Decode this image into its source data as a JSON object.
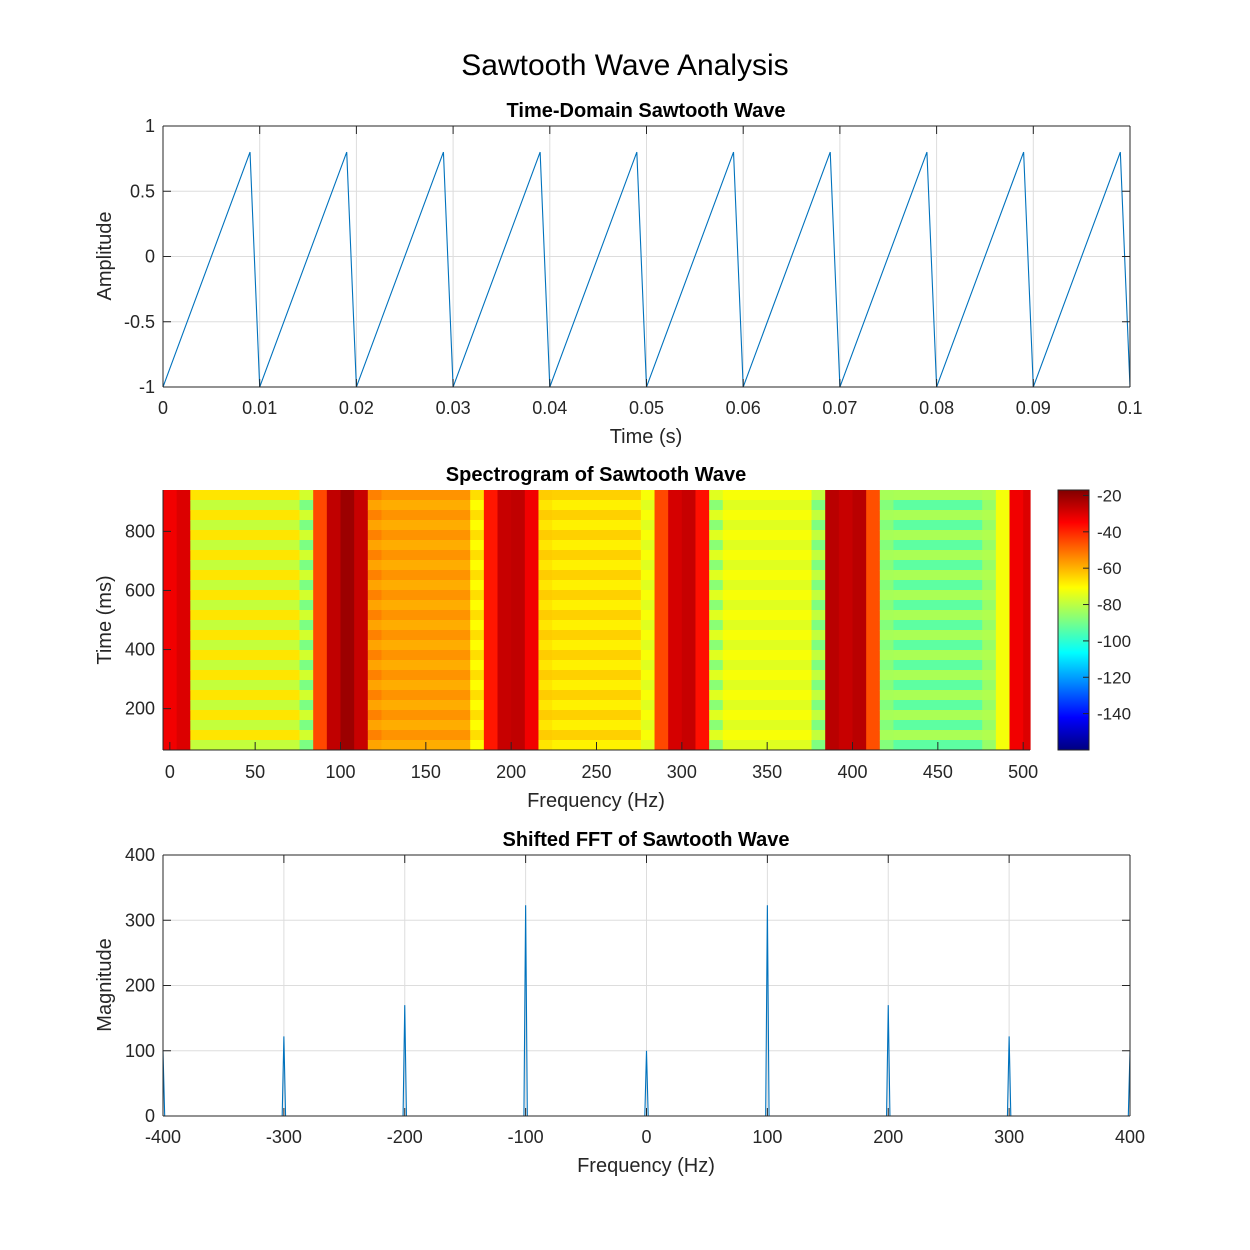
{
  "figure": {
    "title": "Sawtooth Wave Analysis"
  },
  "colors": {
    "line": "#0072BD",
    "grid": "#dddddd",
    "axis": "#262626"
  },
  "chart_data": [
    {
      "type": "line",
      "title": "Time-Domain Sawtooth Wave",
      "xlabel": "Time (s)",
      "ylabel": "Amplitude",
      "xlim": [
        0,
        0.1
      ],
      "ylim": [
        -1,
        1
      ],
      "xticks": [
        "0",
        "0.01",
        "0.02",
        "0.03",
        "0.04",
        "0.05",
        "0.06",
        "0.07",
        "0.08",
        "0.09",
        "0.1"
      ],
      "yticks": [
        "-1",
        "-0.5",
        "0",
        "0.5",
        "1"
      ],
      "grid": true,
      "series": [
        {
          "x": [
            0,
            0.009,
            0.01,
            0.019,
            0.02,
            0.029,
            0.03,
            0.039,
            0.04,
            0.049,
            0.05,
            0.059,
            0.06,
            0.069,
            0.07,
            0.079,
            0.08,
            0.089,
            0.09,
            0.099,
            0.1
          ],
          "y": [
            -1,
            0.8,
            -1,
            0.8,
            -1,
            0.8,
            -1,
            0.8,
            -1,
            0.8,
            -1,
            0.8,
            -1,
            0.8,
            -1,
            0.8,
            -1,
            0.8,
            -1,
            0.8,
            -1
          ]
        }
      ]
    },
    {
      "type": "heatmap",
      "title": "Spectrogram of Sawtooth Wave",
      "xlabel": "Frequency (Hz)",
      "ylabel": "Time (ms)",
      "xlim": [
        -4,
        504
      ],
      "ylim": [
        60,
        940
      ],
      "xticks": [
        "0",
        "50",
        "100",
        "150",
        "200",
        "250",
        "300",
        "350",
        "400",
        "450",
        "500"
      ],
      "yticks": [
        "200",
        "400",
        "600",
        "800"
      ],
      "colorbar": {
        "colormap": "jet",
        "range": [
          -160,
          -17
        ],
        "ticks": [
          "-20",
          "-40",
          "-60",
          "-80",
          "-100",
          "-120",
          "-140"
        ]
      },
      "bands": [
        {
          "f0": -4,
          "f1": 4,
          "db": -33,
          "var": 0
        },
        {
          "f0": 4,
          "f1": 12,
          "db": -30,
          "var": 0
        },
        {
          "f0": 12,
          "f1": 76,
          "db": -72,
          "var": 10
        },
        {
          "f0": 76,
          "f1": 84,
          "db": -82,
          "var": 10
        },
        {
          "f0": 84,
          "f1": 92,
          "db": -45,
          "var": 0
        },
        {
          "f0": 92,
          "f1": 100,
          "db": -26,
          "var": 0
        },
        {
          "f0": 100,
          "f1": 108,
          "db": -21,
          "var": 0
        },
        {
          "f0": 108,
          "f1": 116,
          "db": -27,
          "var": 0
        },
        {
          "f0": 116,
          "f1": 124,
          "db": -55,
          "var": 4
        },
        {
          "f0": 124,
          "f1": 176,
          "db": -57,
          "var": 3
        },
        {
          "f0": 176,
          "f1": 184,
          "db": -68,
          "var": 4
        },
        {
          "f0": 184,
          "f1": 192,
          "db": -38,
          "var": 0
        },
        {
          "f0": 192,
          "f1": 200,
          "db": -27,
          "var": 0
        },
        {
          "f0": 200,
          "f1": 208,
          "db": -26,
          "var": 0
        },
        {
          "f0": 208,
          "f1": 216,
          "db": -33,
          "var": 0
        },
        {
          "f0": 216,
          "f1": 224,
          "db": -65,
          "var": 3
        },
        {
          "f0": 224,
          "f1": 276,
          "db": -66,
          "var": 4
        },
        {
          "f0": 276,
          "f1": 284,
          "db": -73,
          "var": 3
        },
        {
          "f0": 284,
          "f1": 292,
          "db": -45,
          "var": 0
        },
        {
          "f0": 292,
          "f1": 300,
          "db": -29,
          "var": 0
        },
        {
          "f0": 300,
          "f1": 308,
          "db": -27,
          "var": 0
        },
        {
          "f0": 308,
          "f1": 316,
          "db": -37,
          "var": 0
        },
        {
          "f0": 316,
          "f1": 324,
          "db": -80,
          "var": 10
        },
        {
          "f0": 324,
          "f1": 376,
          "db": -73,
          "var": 3
        },
        {
          "f0": 376,
          "f1": 384,
          "db": -83,
          "var": 8
        },
        {
          "f0": 384,
          "f1": 392,
          "db": -25,
          "var": 0
        },
        {
          "f0": 392,
          "f1": 400,
          "db": -27,
          "var": 0
        },
        {
          "f0": 400,
          "f1": 408,
          "db": -25,
          "var": 0
        },
        {
          "f0": 408,
          "f1": 416,
          "db": -46,
          "var": 0
        },
        {
          "f0": 416,
          "f1": 424,
          "db": -85,
          "var": 4
        },
        {
          "f0": 424,
          "f1": 476,
          "db": -87,
          "var": 9
        },
        {
          "f0": 476,
          "f1": 484,
          "db": -83,
          "var": 3
        },
        {
          "f0": 484,
          "f1": 492,
          "db": -72,
          "var": 0
        },
        {
          "f0": 492,
          "f1": 500,
          "db": -33,
          "var": 0
        },
        {
          "f0": 500,
          "f1": 504,
          "db": -30,
          "var": 0
        }
      ]
    },
    {
      "type": "line",
      "title": "Shifted FFT of Sawtooth Wave",
      "xlabel": "Frequency (Hz)",
      "ylabel": "Magnitude",
      "xlim": [
        -400,
        400
      ],
      "ylim": [
        0,
        400
      ],
      "xticks": [
        "-400",
        "-300",
        "-200",
        "-100",
        "0",
        "100",
        "200",
        "300",
        "400"
      ],
      "yticks": [
        "0",
        "100",
        "200",
        "300",
        "400"
      ],
      "grid": true,
      "peaks": [
        {
          "f": -400,
          "mag": 100
        },
        {
          "f": -300,
          "mag": 122
        },
        {
          "f": -200,
          "mag": 170
        },
        {
          "f": -100,
          "mag": 323
        },
        {
          "f": 0,
          "mag": 100
        },
        {
          "f": 100,
          "mag": 323
        },
        {
          "f": 200,
          "mag": 170
        },
        {
          "f": 300,
          "mag": 122
        },
        {
          "f": 400,
          "mag": 100
        }
      ]
    }
  ]
}
